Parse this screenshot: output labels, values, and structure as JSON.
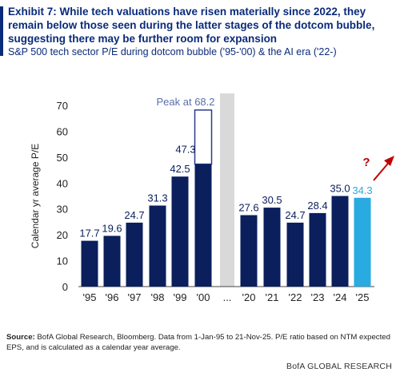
{
  "header": {
    "title": "Exhibit 7: While tech valuations have risen materially since 2022, they remain below those seen during the latter stages of the dotcom bubble, suggesting there may be further room for expansion",
    "subtitle": "S&P 500 tech sector P/E during dotcom bubble ('95-'00) & the AI era ('22-)"
  },
  "footer": {
    "source_label": "Source:",
    "source_text": " BofA Global Research, Bloomberg. Data from 1-Jan-95 to 21-Nov-25. P/E ratio based on NTM expected EPS, and is calculated as a calendar year average.",
    "brand": "BofA GLOBAL RESEARCH"
  },
  "colors": {
    "navy": "#0a1f5c",
    "light_blue": "#29aae1",
    "outline": "#2a3a8c",
    "break_band": "#d9d9d9",
    "arrow_red": "#c00000",
    "peak_label": "#5a6fa8"
  },
  "chart_data": {
    "type": "bar",
    "ylabel": "Calendar yr average P/E",
    "ylim": [
      0,
      70
    ],
    "yticks": [
      "0",
      "10",
      "20",
      "30",
      "40",
      "50",
      "60",
      "70"
    ],
    "grid": false,
    "categories": [
      "'95",
      "'96",
      "'97",
      "'98",
      "'99",
      "'00",
      "...",
      "'20",
      "'21",
      "'22",
      "'23",
      "'24",
      "'25"
    ],
    "values": [
      17.7,
      19.6,
      24.7,
      31.3,
      42.5,
      47.3,
      null,
      27.6,
      30.5,
      24.7,
      28.4,
      35.0,
      34.3
    ],
    "labels": [
      "17.7",
      "19.6",
      "24.7",
      "31.3",
      "42.5",
      "47.3",
      "",
      "27.6",
      "30.5",
      "24.7",
      "28.4",
      "35.0",
      "34.3"
    ],
    "highlight_category": "'25",
    "peak": {
      "category": "'00",
      "value": 68.2,
      "label": "Peak at 68.2"
    },
    "annotation": {
      "text": "?",
      "near": "'25"
    }
  }
}
